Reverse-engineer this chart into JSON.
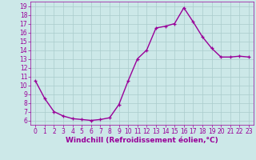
{
  "x": [
    0,
    1,
    2,
    3,
    4,
    5,
    6,
    7,
    8,
    9,
    10,
    11,
    12,
    13,
    14,
    15,
    16,
    17,
    18,
    19,
    20,
    21,
    22,
    23
  ],
  "y": [
    10.5,
    8.5,
    7.0,
    6.5,
    6.2,
    6.1,
    6.0,
    6.1,
    6.3,
    7.8,
    10.5,
    13.0,
    14.0,
    16.5,
    16.7,
    17.0,
    18.8,
    17.2,
    15.5,
    14.2,
    13.2,
    13.2,
    13.3,
    13.2
  ],
  "line_color": "#990099",
  "marker": "+",
  "marker_size": 3,
  "linewidth": 1.0,
  "bg_color": "#cce8e8",
  "grid_color": "#aacccc",
  "xlabel": "Windchill (Refroidissement éolien,°C)",
  "xlabel_fontsize": 6.5,
  "tick_fontsize": 5.5,
  "ylim": [
    5.5,
    19.5
  ],
  "xlim": [
    -0.5,
    23.5
  ],
  "yticks": [
    6,
    7,
    8,
    9,
    10,
    11,
    12,
    13,
    14,
    15,
    16,
    17,
    18,
    19
  ],
  "xticks": [
    0,
    1,
    2,
    3,
    4,
    5,
    6,
    7,
    8,
    9,
    10,
    11,
    12,
    13,
    14,
    15,
    16,
    17,
    18,
    19,
    20,
    21,
    22,
    23
  ]
}
